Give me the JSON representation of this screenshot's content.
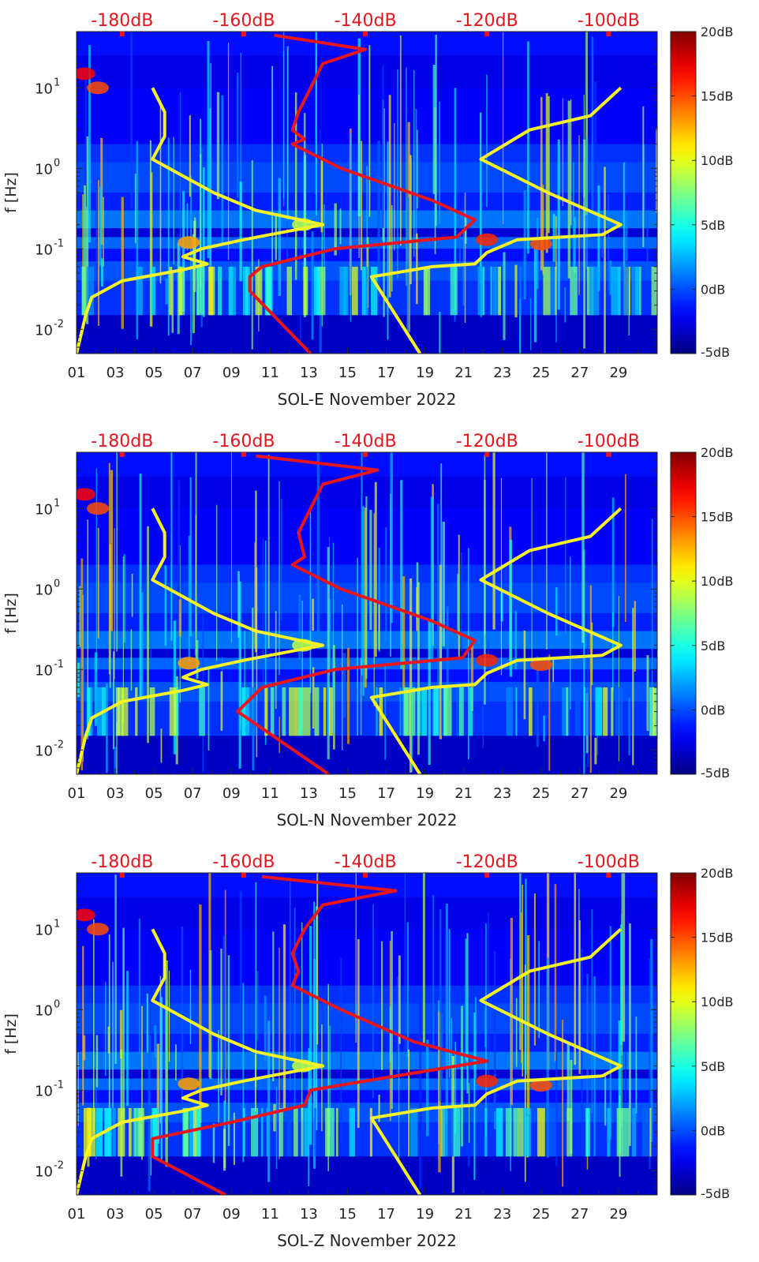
{
  "colors": {
    "spectrogram_background": "#1c4fe0",
    "yellow_curve": "#f5f226",
    "red_curve": "#e8161c",
    "axis_text": "#262626",
    "top_axis_text": "#e8161c"
  },
  "chart_data": [
    {
      "type": "heatmap",
      "panel_id": "E",
      "title": "",
      "xlabel": "SOL-E November 2022",
      "ylabel": "f [Hz]",
      "x_ticks": [
        "01",
        "03",
        "05",
        "07",
        "09",
        "11",
        "13",
        "15",
        "17",
        "19",
        "21",
        "23",
        "25",
        "27",
        "29"
      ],
      "x_range_days": [
        1,
        31
      ],
      "y_scale": "log",
      "ylim": [
        0.005,
        50
      ],
      "y_tick_labels": [
        "10^-2",
        "10^-1",
        "10^0",
        "10^1"
      ],
      "y_tick_values": [
        0.01,
        0.1,
        1,
        10
      ],
      "colorbar": {
        "labels": [
          "20dB",
          "15dB",
          "10dB",
          "5dB",
          "0dB",
          "-5dB"
        ],
        "values": [
          20,
          15,
          10,
          5,
          0,
          -5
        ],
        "range": [
          -5,
          20
        ],
        "colormap": "jet"
      },
      "top_axis": {
        "labels": [
          "-180dB",
          "-160dB",
          "-140dB",
          "-120dB",
          "-100dB"
        ],
        "values": [
          -180,
          -160,
          -140,
          -120,
          -100
        ],
        "range_db": [
          -187.5,
          -92
        ]
      },
      "yellow_curve_low": [
        [
          -187.5,
          0.005
        ],
        [
          -186,
          0.015
        ],
        [
          -185,
          0.025
        ],
        [
          -180,
          0.04
        ],
        [
          -170,
          0.055
        ],
        [
          -166,
          0.065
        ],
        [
          -170,
          0.08
        ],
        [
          -167,
          0.1
        ],
        [
          -160,
          0.13
        ],
        [
          -147,
          0.2
        ],
        [
          -158,
          0.3
        ],
        [
          -165,
          0.5
        ],
        [
          -175,
          1.3
        ],
        [
          -173,
          2.5
        ],
        [
          -173,
          5
        ],
        [
          -175,
          10
        ]
      ],
      "yellow_curve_high": [
        [
          -131,
          0.005
        ],
        [
          -139,
          0.045
        ],
        [
          -129,
          0.06
        ],
        [
          -122,
          0.065
        ],
        [
          -120,
          0.09
        ],
        [
          -115,
          0.13
        ],
        [
          -101,
          0.15
        ],
        [
          -98,
          0.2
        ],
        [
          -110,
          0.5
        ],
        [
          -121,
          1.3
        ],
        [
          -113,
          3
        ],
        [
          -103,
          4.5
        ],
        [
          -98,
          10
        ]
      ],
      "red_curve": [
        [
          -149,
          0.005
        ],
        [
          -159,
          0.03
        ],
        [
          -159,
          0.045
        ],
        [
          -157,
          0.06
        ],
        [
          -145,
          0.1
        ],
        [
          -125,
          0.14
        ],
        [
          -122,
          0.23
        ],
        [
          -129,
          0.4
        ],
        [
          -144,
          1.0
        ],
        [
          -152,
          2.0
        ],
        [
          -150,
          2.3
        ],
        [
          -152,
          3
        ],
        [
          -151,
          5
        ],
        [
          -149,
          10
        ],
        [
          -147,
          20
        ],
        [
          -140,
          30
        ],
        [
          -155,
          45
        ]
      ]
    },
    {
      "type": "heatmap",
      "panel_id": "N",
      "title": "",
      "xlabel": "SOL-N November 2022",
      "ylabel": "f [Hz]",
      "x_ticks": [
        "01",
        "03",
        "05",
        "07",
        "09",
        "11",
        "13",
        "15",
        "17",
        "19",
        "21",
        "23",
        "25",
        "27",
        "29"
      ],
      "x_range_days": [
        1,
        31
      ],
      "y_scale": "log",
      "ylim": [
        0.005,
        50
      ],
      "y_tick_labels": [
        "10^-2",
        "10^-1",
        "10^0",
        "10^1"
      ],
      "y_tick_values": [
        0.01,
        0.1,
        1,
        10
      ],
      "colorbar": {
        "labels": [
          "20dB",
          "15dB",
          "10dB",
          "5dB",
          "0dB",
          "-5dB"
        ],
        "values": [
          20,
          15,
          10,
          5,
          0,
          -5
        ],
        "range": [
          -5,
          20
        ],
        "colormap": "jet"
      },
      "top_axis": {
        "labels": [
          "-180dB",
          "-160dB",
          "-140dB",
          "-120dB",
          "-100dB"
        ],
        "values": [
          -180,
          -160,
          -140,
          -120,
          -100
        ],
        "range_db": [
          -187.5,
          -92
        ]
      },
      "yellow_curve_low": [
        [
          -187.5,
          0.005
        ],
        [
          -186,
          0.015
        ],
        [
          -185,
          0.025
        ],
        [
          -180,
          0.04
        ],
        [
          -170,
          0.055
        ],
        [
          -166,
          0.065
        ],
        [
          -170,
          0.08
        ],
        [
          -167,
          0.1
        ],
        [
          -160,
          0.13
        ],
        [
          -147,
          0.2
        ],
        [
          -158,
          0.3
        ],
        [
          -165,
          0.5
        ],
        [
          -175,
          1.3
        ],
        [
          -173,
          2.5
        ],
        [
          -173,
          5
        ],
        [
          -175,
          10
        ]
      ],
      "yellow_curve_high": [
        [
          -131,
          0.005
        ],
        [
          -139,
          0.045
        ],
        [
          -129,
          0.06
        ],
        [
          -122,
          0.065
        ],
        [
          -120,
          0.09
        ],
        [
          -115,
          0.13
        ],
        [
          -101,
          0.15
        ],
        [
          -98,
          0.2
        ],
        [
          -110,
          0.5
        ],
        [
          -121,
          1.3
        ],
        [
          -113,
          3
        ],
        [
          -103,
          4.5
        ],
        [
          -98,
          10
        ]
      ],
      "red_curve": [
        [
          -146,
          0.005
        ],
        [
          -161,
          0.03
        ],
        [
          -157,
          0.06
        ],
        [
          -145,
          0.1
        ],
        [
          -124,
          0.14
        ],
        [
          -122,
          0.23
        ],
        [
          -129,
          0.4
        ],
        [
          -144,
          1.0
        ],
        [
          -152,
          2.0
        ],
        [
          -150,
          2.5
        ],
        [
          -151,
          5
        ],
        [
          -149,
          10
        ],
        [
          -147,
          20
        ],
        [
          -138,
          30
        ],
        [
          -158,
          45
        ]
      ]
    },
    {
      "type": "heatmap",
      "panel_id": "Z",
      "title": "",
      "xlabel": "SOL-Z November 2022",
      "ylabel": "f [Hz]",
      "x_ticks": [
        "01",
        "03",
        "05",
        "07",
        "09",
        "11",
        "13",
        "15",
        "17",
        "19",
        "21",
        "23",
        "25",
        "27",
        "29"
      ],
      "x_range_days": [
        1,
        31
      ],
      "y_scale": "log",
      "ylim": [
        0.005,
        50
      ],
      "y_tick_labels": [
        "10^-2",
        "10^-1",
        "10^0",
        "10^1"
      ],
      "y_tick_values": [
        0.01,
        0.1,
        1,
        10
      ],
      "colorbar": {
        "labels": [
          "20dB",
          "15dB",
          "10dB",
          "5dB",
          "0dB",
          "-5dB"
        ],
        "values": [
          20,
          15,
          10,
          5,
          0,
          -5
        ],
        "range": [
          -5,
          20
        ],
        "colormap": "jet"
      },
      "top_axis": {
        "labels": [
          "-180dB",
          "-160dB",
          "-140dB",
          "-120dB",
          "-100dB"
        ],
        "values": [
          -180,
          -160,
          -140,
          -120,
          -100
        ],
        "range_db": [
          -187.5,
          -92
        ]
      },
      "yellow_curve_low": [
        [
          -187.5,
          0.005
        ],
        [
          -186,
          0.015
        ],
        [
          -185,
          0.025
        ],
        [
          -180,
          0.04
        ],
        [
          -170,
          0.055
        ],
        [
          -166,
          0.065
        ],
        [
          -170,
          0.08
        ],
        [
          -167,
          0.1
        ],
        [
          -160,
          0.13
        ],
        [
          -147,
          0.2
        ],
        [
          -158,
          0.3
        ],
        [
          -165,
          0.5
        ],
        [
          -175,
          1.3
        ],
        [
          -173,
          2.5
        ],
        [
          -173,
          5
        ],
        [
          -175,
          10
        ]
      ],
      "yellow_curve_high": [
        [
          -131,
          0.005
        ],
        [
          -139,
          0.045
        ],
        [
          -129,
          0.06
        ],
        [
          -122,
          0.065
        ],
        [
          -120,
          0.09
        ],
        [
          -115,
          0.13
        ],
        [
          -101,
          0.15
        ],
        [
          -98,
          0.2
        ],
        [
          -110,
          0.5
        ],
        [
          -121,
          1.3
        ],
        [
          -113,
          3
        ],
        [
          -103,
          4.5
        ],
        [
          -98,
          10
        ]
      ],
      "red_curve": [
        [
          -163,
          0.005
        ],
        [
          -175,
          0.015
        ],
        [
          -175,
          0.025
        ],
        [
          -162,
          0.04
        ],
        [
          -150,
          0.065
        ],
        [
          -149,
          0.1
        ],
        [
          -140,
          0.13
        ],
        [
          -120,
          0.23
        ],
        [
          -132,
          0.4
        ],
        [
          -144,
          1.0
        ],
        [
          -152,
          2.0
        ],
        [
          -151,
          3
        ],
        [
          -152,
          5
        ],
        [
          -150,
          10
        ],
        [
          -147,
          20
        ],
        [
          -135,
          30
        ],
        [
          -157,
          45
        ]
      ]
    }
  ]
}
